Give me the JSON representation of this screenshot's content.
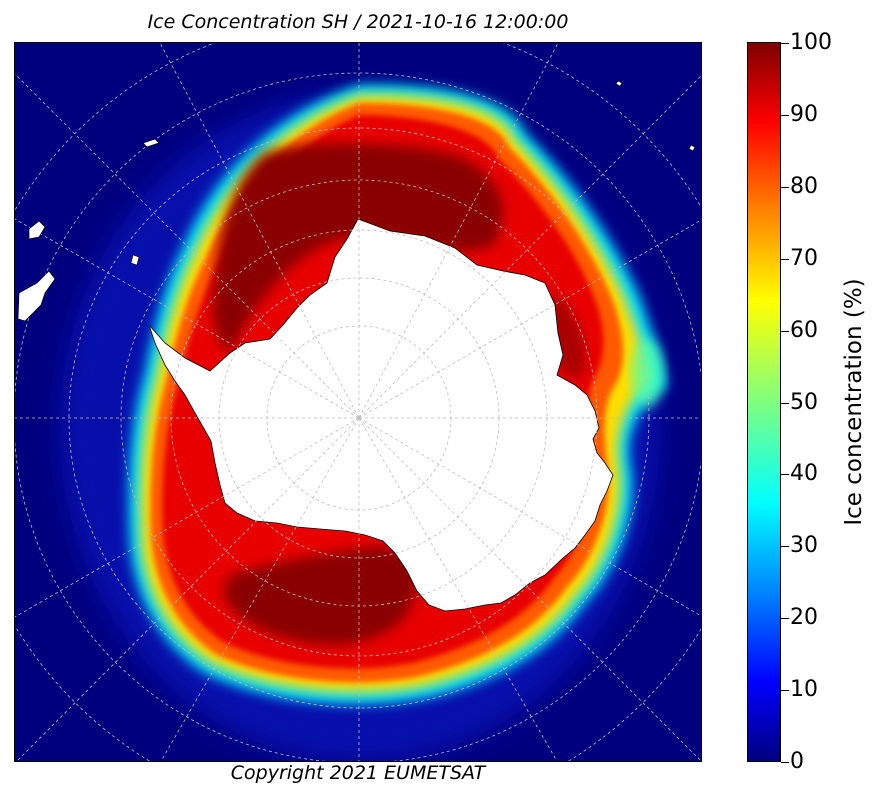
{
  "title": "Ice Concentration SH / 2021-10-16 12:00:00",
  "copyright": "Copyright 2021 EUMETSAT",
  "colorbar": {
    "label": "Ice concentration (%)",
    "ticks": [
      "0",
      "10",
      "20",
      "30",
      "40",
      "50",
      "60",
      "70",
      "80",
      "90",
      "100"
    ],
    "range": [
      0,
      100
    ],
    "colormap": "jet",
    "colors": {
      "0": "#00007f",
      "10": "#0000ff",
      "20": "#007fff",
      "30": "#00ffff",
      "50": "#7fff7f",
      "60": "#ffff00",
      "80": "#ff7f00",
      "90": "#ff0000",
      "100": "#7f0000"
    }
  },
  "map": {
    "projection": "south-polar-stereographic",
    "gridlines": true,
    "land_color": "#ffffff",
    "ocean_color": "#00007f",
    "features": [
      "antarctica",
      "sea-ice-field",
      "south-america-tip",
      "south-georgia"
    ]
  }
}
